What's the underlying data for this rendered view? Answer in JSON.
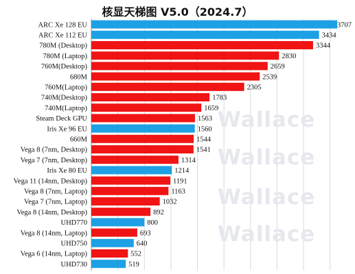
{
  "chart_data": {
    "type": "bar",
    "orientation": "horizontal",
    "title": "核显天梯图 V5.0（2024.7）",
    "watermark": "Wallace",
    "grid": true,
    "xlim": [
      0,
      3800
    ],
    "colors": {
      "intel": "#1ea0e4",
      "amd": "#f01414"
    },
    "categories": [
      "ARC Xe 128 EU",
      "ARC Xe 112 EU",
      "780M (Desktop)",
      "780M (Laptop)",
      "760M(Desktop)",
      "680M",
      "760M(Laptop)",
      "740M(Desktop)",
      "740M(Laptop)",
      "Steam Deck GPU",
      "Iris Xe 96 EU",
      "660M",
      "Vega 8 (7nm, Desktop)",
      "Vega 7 (7nm, Desktop)",
      "Iris Xe 80 EU",
      "Vega 11 (14nm, Desktop)",
      "Vega 8 (7nm, Laptop)",
      "Vega 7 (7nm, Laptop)",
      "Vega 8 (14nm, Desktop)",
      "UHD770",
      "Vega 8 (14nm, Laptop)",
      "UHD750",
      "Vega 6 (14nm, Laptop)",
      "UHD730"
    ],
    "values": [
      3707,
      3434,
      3344,
      2830,
      2659,
      2539,
      2305,
      1783,
      1659,
      1563,
      1560,
      1544,
      1541,
      1314,
      1214,
      1191,
      1163,
      1032,
      892,
      800,
      693,
      640,
      552,
      519
    ],
    "vendor": [
      "intel",
      "intel",
      "amd",
      "amd",
      "amd",
      "amd",
      "amd",
      "amd",
      "amd",
      "amd",
      "intel",
      "amd",
      "amd",
      "amd",
      "intel",
      "amd",
      "amd",
      "amd",
      "amd",
      "intel",
      "amd",
      "intel",
      "amd",
      "intel"
    ]
  }
}
